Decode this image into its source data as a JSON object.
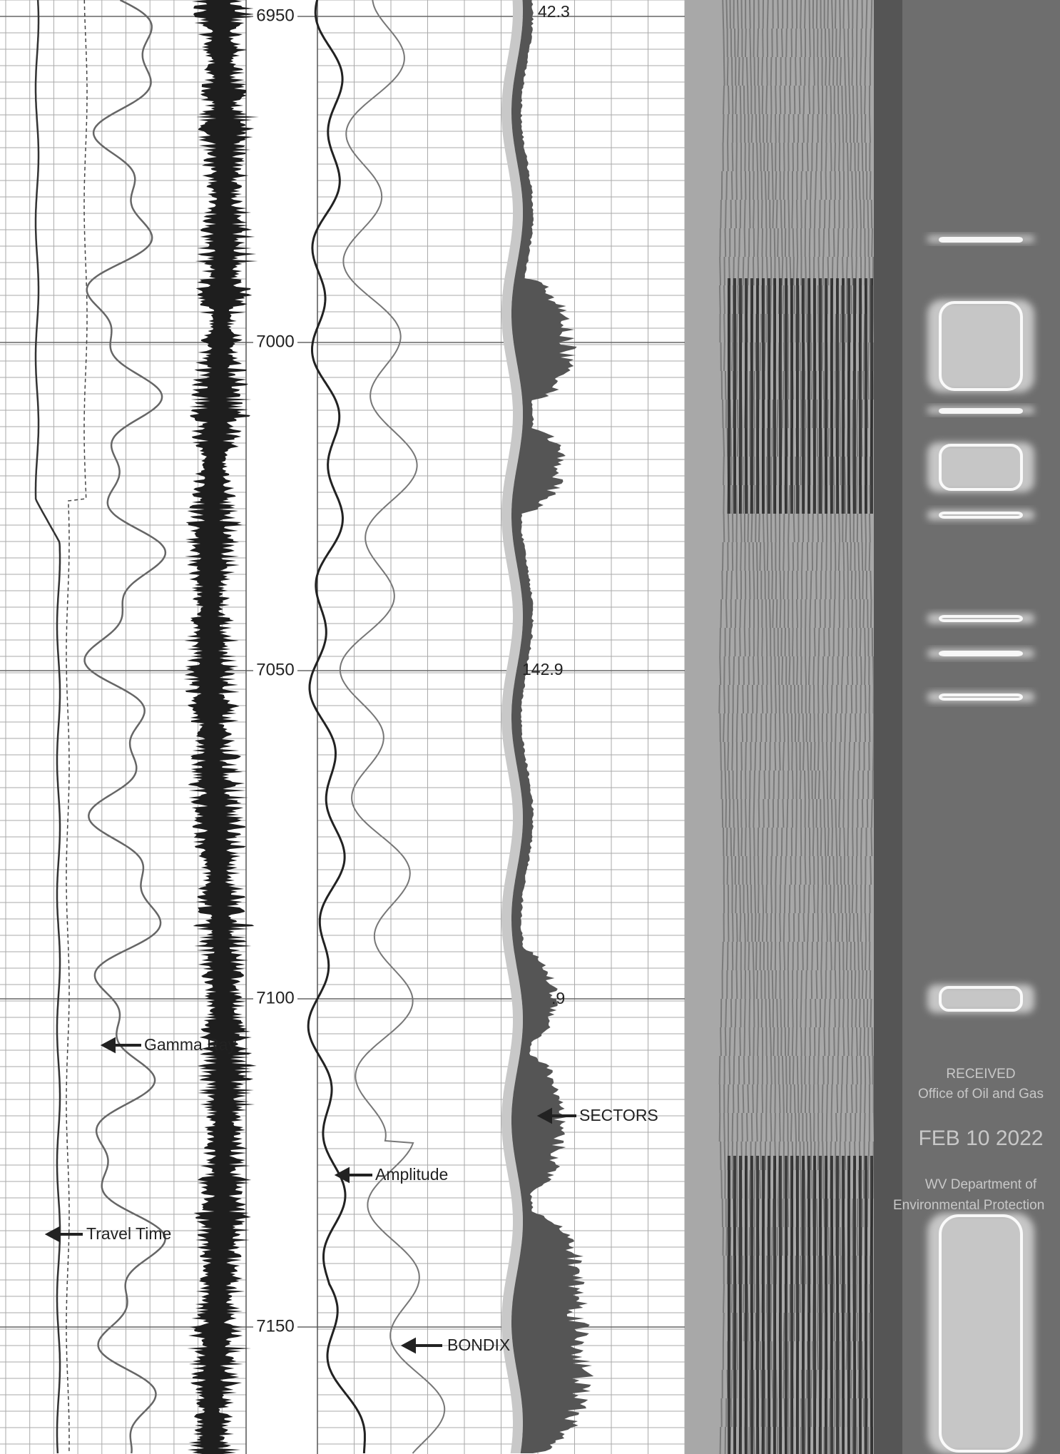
{
  "depth_labels": [
    "6950",
    "7000",
    "7050",
    "7100",
    "7150"
  ],
  "track_labels": [
    "42.3",
    "142.9",
    ".9"
  ],
  "curve_labels": {
    "gamma_ray": "Gamma Ray",
    "travel_time": "Travel Time",
    "amplitude": "Amplitude",
    "bondix": "BONDIX",
    "sectors": "SECTORS"
  },
  "stamp": {
    "line1": "RECEIVED",
    "line2": "Office of Oil and Gas",
    "date": "FEB 10 2022",
    "line3": "WV Department of",
    "line4": "Environmental Protection"
  }
}
